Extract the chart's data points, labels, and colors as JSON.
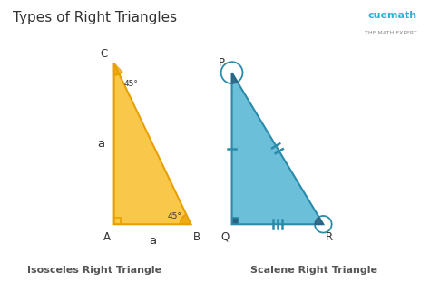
{
  "title": "Types of Right Triangles",
  "bg_color": "#ffffff",
  "title_fontsize": 11,
  "title_color": "#333333",
  "tri1": {
    "A": [
      0.08,
      0.15
    ],
    "C": [
      0.08,
      0.82
    ],
    "B": [
      0.4,
      0.15
    ],
    "fill_color": "#f9c84a",
    "edge_color": "#e8a000"
  },
  "tri2": {
    "Q": [
      0.57,
      0.15
    ],
    "P": [
      0.57,
      0.78
    ],
    "R": [
      0.95,
      0.15
    ],
    "fill_color": "#6bbfd9",
    "edge_color": "#2a8aaa"
  },
  "label1": "Isosceles Right Triangle",
  "label2": "Scalene Right Triangle",
  "label_color": "#555555",
  "cuemath_color": "#29b6d4",
  "cuemath_text": "cuemath",
  "sub_text": "THE MATH EXPERT"
}
